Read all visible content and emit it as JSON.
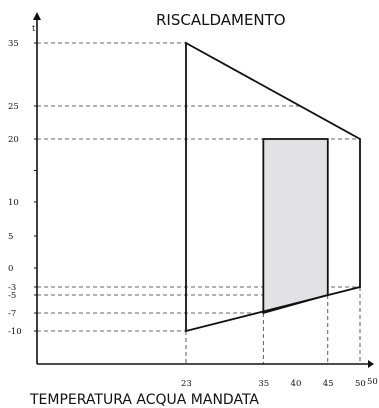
{
  "chart_data": {
    "type": "area",
    "title": "RISCALDAMENTO",
    "xlabel": "TEMPERATURA ACQUA MANDATA",
    "ylabel": "t",
    "x_ticks": [
      23,
      35,
      40,
      45,
      50
    ],
    "x_end_label": "50",
    "y_ticks": [
      35,
      25,
      20,
      10,
      5,
      0,
      -3,
      -5,
      -7,
      -10
    ],
    "y_tick_labels": [
      "35",
      "25",
      "20",
      "10",
      "5",
      "0",
      "-3",
      "-5",
      "-7",
      "-10"
    ],
    "series": [
      {
        "type": "outline",
        "points": [
          [
            23,
            35
          ],
          [
            50,
            20
          ],
          [
            50,
            -3
          ],
          [
            23,
            -10
          ]
        ]
      },
      {
        "type": "filled-region",
        "points": [
          [
            35,
            20
          ],
          [
            45,
            20
          ],
          [
            45,
            -5
          ],
          [
            35,
            -7
          ]
        ]
      }
    ],
    "reference_lines": {
      "horizontal": [
        35,
        25,
        20,
        -3,
        -5,
        -7,
        -10
      ],
      "vertical": [
        23,
        35,
        45,
        50
      ]
    },
    "colors": {
      "axis": "#111111",
      "fill": "#e2e2e4",
      "guide": "#333333"
    }
  }
}
